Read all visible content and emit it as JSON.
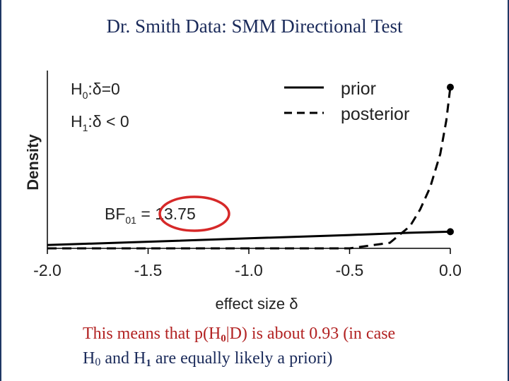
{
  "title": "Dr. Smith Data: SMM Directional Test",
  "chart_data": {
    "type": "line",
    "title": "",
    "xlabel": "effect size δ",
    "ylabel": "Density",
    "xlim": [
      -2.0,
      0.0
    ],
    "xticks": [
      "-2.0",
      "-1.5",
      "-1.0",
      "-0.5",
      "0.0"
    ],
    "hypotheses": {
      "h0": {
        "base": "H",
        "sub": "0",
        "rest": ":δ=0"
      },
      "h1": {
        "base": "H",
        "sub": "1",
        "rest": ":δ < 0"
      }
    },
    "bf": {
      "base": "BF",
      "sub": "01",
      "eq": " = ",
      "value": "13.75"
    },
    "series": [
      {
        "name": "prior",
        "style": "solid",
        "x": [
          -2.0,
          -1.5,
          -1.0,
          -0.5,
          -0.2,
          0.0
        ],
        "y": [
          0.03,
          0.06,
          0.09,
          0.12,
          0.14,
          0.15
        ]
      },
      {
        "name": "posterior",
        "style": "dashed",
        "x": [
          -2.0,
          -0.5,
          -0.3,
          -0.2,
          -0.15,
          -0.1,
          -0.05,
          -0.02,
          0.0
        ],
        "y": [
          0.0,
          0.0,
          0.05,
          0.2,
          0.35,
          0.55,
          0.85,
          1.15,
          1.45
        ]
      }
    ],
    "points_at_zero": [
      {
        "series": "prior",
        "y": 0.15
      },
      {
        "series": "posterior",
        "y": 1.45
      }
    ]
  },
  "caption": {
    "line1": {
      "pre": "This means that p(H",
      "sub": "0",
      "post": "|D) is about 0.93 (in case"
    },
    "line2": {
      "h0base": "H",
      "h0sub": "0",
      "mid": " and H",
      "h1sub": "1",
      "post": " are equally likely a priori)"
    }
  },
  "colors": {
    "title": "#1a2a5a",
    "caption_red": "#b22222",
    "highlight_circle": "#d62828",
    "axes": "#000000"
  }
}
